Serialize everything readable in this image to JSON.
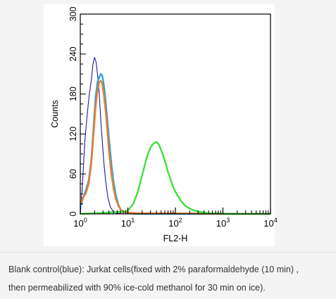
{
  "chart_data": {
    "type": "line",
    "title": "",
    "xlabel": "FL2-H",
    "ylabel": "Counts",
    "xscale": "log",
    "xlim": [
      1,
      10000
    ],
    "ylim": [
      0,
      300
    ],
    "x_ticks": [
      {
        "base": "10",
        "exp": "0",
        "value": 1
      },
      {
        "base": "10",
        "exp": "1",
        "value": 10
      },
      {
        "base": "10",
        "exp": "2",
        "value": 100
      },
      {
        "base": "10",
        "exp": "3",
        "value": 1000
      },
      {
        "base": "10",
        "exp": "4",
        "value": 10000
      }
    ],
    "y_ticks": [
      "0",
      "60",
      "120",
      "180",
      "240",
      "300"
    ],
    "grid": false,
    "legend": "none",
    "series": [
      {
        "color": "#1a1aa0",
        "x": [
          1.0,
          1.1,
          1.25,
          1.4,
          1.55,
          1.7,
          1.85,
          2.0,
          2.15,
          2.3,
          2.5,
          2.7,
          2.9,
          3.1,
          3.4,
          3.8,
          4.3,
          5.0,
          6.0,
          8.0,
          12,
          100,
          10000
        ],
        "y": [
          0,
          40,
          110,
          150,
          180,
          200,
          225,
          235,
          228,
          210,
          180,
          140,
          110,
          80,
          50,
          25,
          10,
          3,
          1,
          0,
          0,
          0,
          0
        ]
      },
      {
        "color": "#29a3e0",
        "x": [
          1.0,
          1.1,
          1.3,
          1.5,
          1.7,
          1.9,
          2.1,
          2.3,
          2.5,
          2.7,
          2.9,
          3.1,
          3.3,
          3.6,
          4.0,
          4.5,
          5.0,
          5.6,
          6.3,
          7.1,
          8.0,
          10,
          15,
          100,
          10000
        ],
        "y": [
          10,
          20,
          35,
          50,
          80,
          130,
          175,
          198,
          205,
          210,
          208,
          195,
          180,
          150,
          115,
          75,
          48,
          28,
          14,
          6,
          3,
          1,
          0,
          0,
          0
        ]
      },
      {
        "color": "#f07c28",
        "x": [
          1.0,
          1.15,
          1.3,
          1.5,
          1.7,
          1.9,
          2.1,
          2.3,
          2.5,
          2.7,
          2.9,
          3.1,
          3.4,
          3.7,
          4.0,
          4.5,
          5.0,
          5.6,
          6.3,
          7.1,
          8.0,
          10,
          15,
          30,
          100,
          1000,
          10000
        ],
        "y": [
          15,
          25,
          30,
          45,
          75,
          120,
          160,
          185,
          198,
          200,
          195,
          180,
          155,
          125,
          95,
          60,
          38,
          22,
          12,
          6,
          3,
          2,
          1,
          1,
          1,
          0,
          0
        ]
      },
      {
        "color": "#3de03d",
        "x": [
          1.0,
          2.0,
          4.0,
          6.0,
          8.0,
          10,
          13,
          16,
          20,
          25,
          30,
          35,
          40,
          45,
          50,
          60,
          70,
          85,
          100,
          130,
          160,
          200,
          250,
          320,
          400,
          500,
          630,
          800,
          1000,
          1500,
          2000,
          3000,
          5000,
          10000
        ],
        "y": [
          0,
          1,
          2,
          3,
          3,
          5,
          15,
          32,
          58,
          85,
          100,
          106,
          108,
          104,
          96,
          80,
          63,
          45,
          33,
          20,
          12,
          8,
          5,
          3,
          2,
          1,
          1,
          1,
          0,
          0,
          0,
          0,
          0,
          0
        ]
      }
    ]
  },
  "caption": {
    "line1": "Blank control(blue): Jurkat cells(fixed with 2% paraformaldehyde (10 min) ,",
    "line2": "then permeabilized with 90% ice-cold methanol for 30 min on ice)."
  }
}
